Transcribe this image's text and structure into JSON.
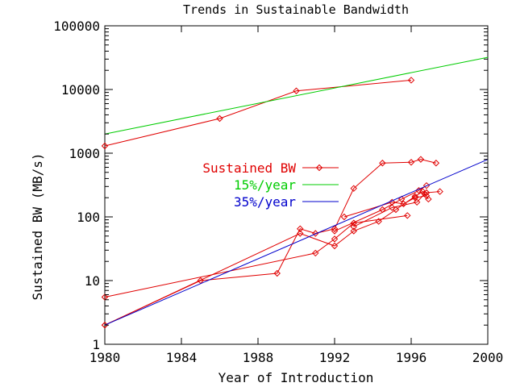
{
  "chart_data": {
    "type": "line",
    "title": "Trends in Sustainable Bandwidth",
    "xlabel": "Year of Introduction",
    "ylabel": "Sustained BW (MB/s)",
    "xlim": [
      1980,
      2000
    ],
    "ylim": [
      1,
      100000
    ],
    "yscale": "log",
    "xticks": [
      1980,
      1984,
      1988,
      1992,
      1996,
      2000
    ],
    "xtick_labels": [
      "1980",
      "1984",
      "1988",
      "1992",
      "1996",
      "2000"
    ],
    "yticks": [
      1,
      10,
      100,
      1000,
      10000,
      100000
    ],
    "ytick_labels": [
      "1",
      "10",
      "100",
      "1000",
      "10000",
      "100000"
    ],
    "grid": false,
    "legend_position": "center-left",
    "colors": {
      "sustained": "#e00000",
      "fifteen": "#00cc00",
      "thirtyfive": "#0000cc",
      "axes": "#000000"
    },
    "series": [
      {
        "name": "Sustained BW",
        "color": "#e00000",
        "marker": "diamond",
        "x": [
          1980,
          1985,
          1989,
          1990.2,
          1991,
          1992,
          1993,
          1994.5,
          1996,
          1996.5,
          1997.3
        ],
        "y": [
          2,
          10,
          13,
          65,
          55,
          65,
          280,
          700,
          720,
          800,
          700
        ]
      },
      {
        "name": "Sustained BW",
        "color": "#e00000",
        "marker": "diamond",
        "x": [
          1980,
          1986,
          1990,
          1996
        ],
        "y": [
          1300,
          3500,
          9500,
          14000
        ]
      },
      {
        "name": "Sustained BW",
        "color": "#e00000",
        "marker": "diamond",
        "x": [
          1980,
          1991,
          1992,
          1993,
          1995.8
        ],
        "y": [
          5.5,
          27,
          45,
          80,
          105
        ]
      },
      {
        "name": "Sustained BW",
        "color": "#e00000",
        "marker": "diamond",
        "x": [
          1980,
          1990.2,
          1992,
          1993,
          1994.3,
          1995.2,
          1996.2,
          1996.6,
          1996.8,
          1997.5
        ],
        "y": [
          2,
          55,
          35,
          60,
          85,
          130,
          210,
          250,
          240,
          250
        ]
      },
      {
        "name": "Sustained BW",
        "color": "#e00000",
        "marker": "diamond",
        "x": [
          1992,
          1994.5,
          1995.5,
          1996.4,
          1996.8
        ],
        "y": [
          60,
          130,
          190,
          260,
          310
        ]
      },
      {
        "name": "Sustained BW",
        "color": "#e00000",
        "marker": "diamond",
        "x": [
          1993,
          1995,
          1996.3,
          1996.7,
          1996.9
        ],
        "y": [
          70,
          140,
          170,
          230,
          190
        ]
      },
      {
        "name": "Sustained BW",
        "color": "#e00000",
        "marker": "diamond",
        "x": [
          1992.5,
          1995,
          1995.6,
          1996.2,
          1996.8
        ],
        "y": [
          100,
          170,
          160,
          200,
          215
        ]
      },
      {
        "name": "15%/year",
        "color": "#00cc00",
        "marker": "none",
        "x": [
          1980,
          2000
        ],
        "y": [
          2000,
          32000
        ]
      },
      {
        "name": "35%/year",
        "color": "#0000cc",
        "marker": "none",
        "x": [
          1980,
          2000
        ],
        "y": [
          2,
          800
        ]
      }
    ],
    "legend": [
      {
        "label": "Sustained BW",
        "color": "#e00000",
        "marker": "diamond"
      },
      {
        "label": "15%/year",
        "color": "#00cc00",
        "marker": "none"
      },
      {
        "label": "35%/year",
        "color": "#0000cc",
        "marker": "none"
      }
    ]
  }
}
